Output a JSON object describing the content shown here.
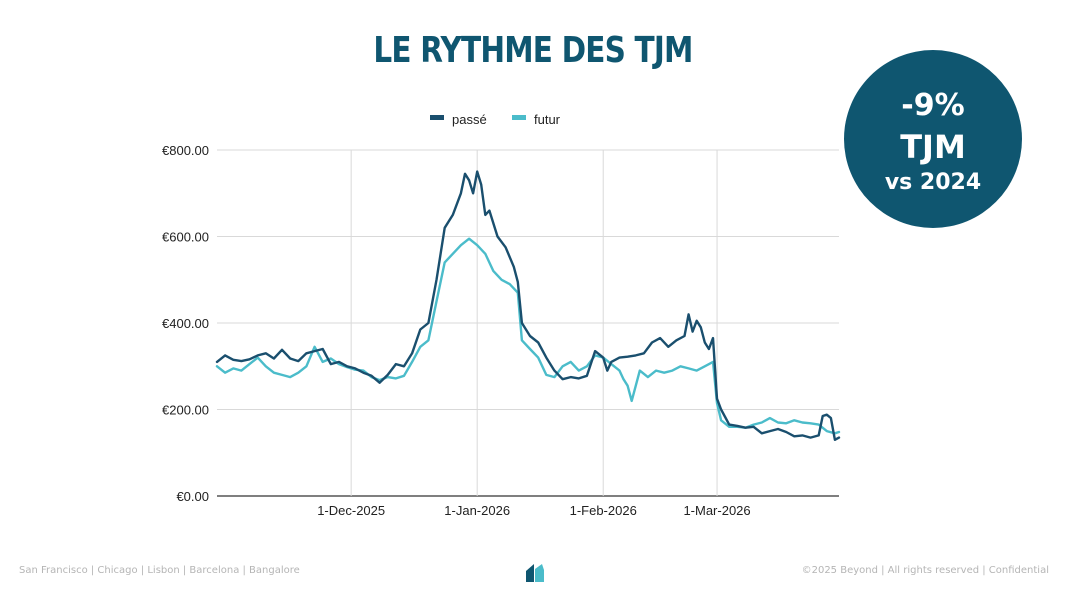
{
  "header": {
    "title": "LE RYTHME DES TJM"
  },
  "badge": {
    "line1": "-9%",
    "line2": "TJM",
    "line3": "vs 2024"
  },
  "footer": {
    "left": "San Francisco | Chicago | Lisbon | Barcelona | Bangalore",
    "right": "©2025 Beyond | All rights reserved | Confidential"
  },
  "colors": {
    "brand": "#0f5670",
    "passe": "#1a4f6e",
    "futur": "#4bbcca"
  },
  "chart_data": {
    "type": "line",
    "title": "",
    "legend_position": "top",
    "grid": true,
    "ylim": [
      0,
      800
    ],
    "y_ticks": [
      0,
      200,
      400,
      600,
      800
    ],
    "y_tick_labels": [
      "€0.00",
      "€200.00",
      "€400.00",
      "€600.00",
      "€800.00"
    ],
    "x_range": [
      "2025-10-29",
      "2026-03-31"
    ],
    "x_ticks": [
      "2025-12-01",
      "2026-01-01",
      "2026-02-01",
      "2026-03-01"
    ],
    "x_tick_labels": [
      "1-Dec-2025",
      "1-Jan-2026",
      "1-Feb-2026",
      "1-Mar-2026"
    ],
    "series": [
      {
        "name": "passé",
        "color": "#1a4f6e",
        "points": [
          [
            "2025-10-29",
            310
          ],
          [
            "2025-10-31",
            325
          ],
          [
            "2025-11-02",
            315
          ],
          [
            "2025-11-04",
            312
          ],
          [
            "2025-11-06",
            316
          ],
          [
            "2025-11-08",
            325
          ],
          [
            "2025-11-10",
            330
          ],
          [
            "2025-11-12",
            318
          ],
          [
            "2025-11-14",
            338
          ],
          [
            "2025-11-16",
            318
          ],
          [
            "2025-11-18",
            312
          ],
          [
            "2025-11-20",
            330
          ],
          [
            "2025-11-22",
            335
          ],
          [
            "2025-11-24",
            340
          ],
          [
            "2025-11-26",
            305
          ],
          [
            "2025-11-28",
            310
          ],
          [
            "2025-11-30",
            300
          ],
          [
            "2025-12-02",
            295
          ],
          [
            "2025-12-04",
            285
          ],
          [
            "2025-12-06",
            278
          ],
          [
            "2025-12-08",
            262
          ],
          [
            "2025-12-10",
            280
          ],
          [
            "2025-12-12",
            305
          ],
          [
            "2025-12-14",
            300
          ],
          [
            "2025-12-16",
            330
          ],
          [
            "2025-12-18",
            385
          ],
          [
            "2025-12-20",
            400
          ],
          [
            "2025-12-22",
            500
          ],
          [
            "2025-12-24",
            620
          ],
          [
            "2025-12-26",
            650
          ],
          [
            "2025-12-28",
            700
          ],
          [
            "2025-12-29",
            745
          ],
          [
            "2025-12-30",
            730
          ],
          [
            "2025-12-31",
            700
          ],
          [
            "2026-01-01",
            750
          ],
          [
            "2026-01-02",
            720
          ],
          [
            "2026-01-03",
            650
          ],
          [
            "2026-01-04",
            660
          ],
          [
            "2026-01-06",
            600
          ],
          [
            "2026-01-08",
            575
          ],
          [
            "2026-01-10",
            530
          ],
          [
            "2026-01-11",
            495
          ],
          [
            "2026-01-12",
            400
          ],
          [
            "2026-01-14",
            370
          ],
          [
            "2026-01-16",
            355
          ],
          [
            "2026-01-18",
            320
          ],
          [
            "2026-01-20",
            290
          ],
          [
            "2026-01-22",
            270
          ],
          [
            "2026-01-24",
            275
          ],
          [
            "2026-01-26",
            272
          ],
          [
            "2026-01-28",
            278
          ],
          [
            "2026-01-30",
            335
          ],
          [
            "2026-02-01",
            320
          ],
          [
            "2026-02-02",
            290
          ],
          [
            "2026-02-03",
            310
          ],
          [
            "2026-02-05",
            320
          ],
          [
            "2026-02-07",
            322
          ],
          [
            "2026-02-09",
            325
          ],
          [
            "2026-02-11",
            330
          ],
          [
            "2026-02-13",
            355
          ],
          [
            "2026-02-15",
            365
          ],
          [
            "2026-02-17",
            345
          ],
          [
            "2026-02-19",
            360
          ],
          [
            "2026-02-21",
            370
          ],
          [
            "2026-02-22",
            420
          ],
          [
            "2026-02-23",
            380
          ],
          [
            "2026-02-24",
            405
          ],
          [
            "2026-02-25",
            390
          ],
          [
            "2026-02-26",
            355
          ],
          [
            "2026-02-27",
            340
          ],
          [
            "2026-02-28",
            365
          ],
          [
            "2026-03-01",
            225
          ],
          [
            "2026-03-02",
            200
          ],
          [
            "2026-03-04",
            165
          ],
          [
            "2026-03-06",
            162
          ],
          [
            "2026-03-08",
            158
          ],
          [
            "2026-03-10",
            160
          ],
          [
            "2026-03-12",
            145
          ],
          [
            "2026-03-14",
            150
          ],
          [
            "2026-03-16",
            155
          ],
          [
            "2026-03-18",
            148
          ],
          [
            "2026-03-20",
            138
          ],
          [
            "2026-03-22",
            140
          ],
          [
            "2026-03-24",
            135
          ],
          [
            "2026-03-26",
            140
          ],
          [
            "2026-03-27",
            185
          ],
          [
            "2026-03-28",
            188
          ],
          [
            "2026-03-29",
            180
          ],
          [
            "2026-03-30",
            130
          ],
          [
            "2026-03-31",
            135
          ]
        ]
      },
      {
        "name": "futur",
        "color": "#4bbcca",
        "points": [
          [
            "2025-10-29",
            300
          ],
          [
            "2025-10-31",
            285
          ],
          [
            "2025-11-02",
            295
          ],
          [
            "2025-11-04",
            290
          ],
          [
            "2025-11-06",
            305
          ],
          [
            "2025-11-08",
            320
          ],
          [
            "2025-11-10",
            300
          ],
          [
            "2025-11-12",
            285
          ],
          [
            "2025-11-14",
            280
          ],
          [
            "2025-11-16",
            275
          ],
          [
            "2025-11-18",
            285
          ],
          [
            "2025-11-20",
            300
          ],
          [
            "2025-11-22",
            345
          ],
          [
            "2025-11-24",
            310
          ],
          [
            "2025-11-26",
            318
          ],
          [
            "2025-11-28",
            305
          ],
          [
            "2025-11-30",
            298
          ],
          [
            "2025-12-02",
            292
          ],
          [
            "2025-12-04",
            290
          ],
          [
            "2025-12-06",
            275
          ],
          [
            "2025-12-08",
            268
          ],
          [
            "2025-12-10",
            275
          ],
          [
            "2025-12-12",
            272
          ],
          [
            "2025-12-14",
            278
          ],
          [
            "2025-12-16",
            310
          ],
          [
            "2025-12-18",
            345
          ],
          [
            "2025-12-20",
            360
          ],
          [
            "2025-12-22",
            450
          ],
          [
            "2025-12-24",
            540
          ],
          [
            "2025-12-26",
            560
          ],
          [
            "2025-12-28",
            580
          ],
          [
            "2025-12-30",
            595
          ],
          [
            "2026-01-01",
            580
          ],
          [
            "2026-01-03",
            560
          ],
          [
            "2026-01-05",
            520
          ],
          [
            "2026-01-07",
            500
          ],
          [
            "2026-01-09",
            490
          ],
          [
            "2026-01-11",
            470
          ],
          [
            "2026-01-12",
            360
          ],
          [
            "2026-01-14",
            340
          ],
          [
            "2026-01-16",
            320
          ],
          [
            "2026-01-18",
            280
          ],
          [
            "2026-01-20",
            275
          ],
          [
            "2026-01-22",
            300
          ],
          [
            "2026-01-24",
            310
          ],
          [
            "2026-01-26",
            290
          ],
          [
            "2026-01-28",
            300
          ],
          [
            "2026-01-30",
            325
          ],
          [
            "2026-02-01",
            320
          ],
          [
            "2026-02-03",
            305
          ],
          [
            "2026-02-05",
            290
          ],
          [
            "2026-02-06",
            270
          ],
          [
            "2026-02-07",
            255
          ],
          [
            "2026-02-08",
            220
          ],
          [
            "2026-02-10",
            290
          ],
          [
            "2026-02-12",
            275
          ],
          [
            "2026-02-14",
            290
          ],
          [
            "2026-02-16",
            285
          ],
          [
            "2026-02-18",
            290
          ],
          [
            "2026-02-20",
            300
          ],
          [
            "2026-02-22",
            295
          ],
          [
            "2026-02-24",
            290
          ],
          [
            "2026-02-26",
            300
          ],
          [
            "2026-02-28",
            310
          ],
          [
            "2026-03-01",
            215
          ],
          [
            "2026-03-02",
            175
          ],
          [
            "2026-03-04",
            160
          ],
          [
            "2026-03-06",
            160
          ],
          [
            "2026-03-08",
            158
          ],
          [
            "2026-03-10",
            165
          ],
          [
            "2026-03-12",
            170
          ],
          [
            "2026-03-14",
            180
          ],
          [
            "2026-03-16",
            170
          ],
          [
            "2026-03-18",
            168
          ],
          [
            "2026-03-20",
            175
          ],
          [
            "2026-03-22",
            170
          ],
          [
            "2026-03-24",
            168
          ],
          [
            "2026-03-26",
            165
          ],
          [
            "2026-03-28",
            150
          ],
          [
            "2026-03-30",
            145
          ],
          [
            "2026-03-31",
            148
          ]
        ]
      }
    ]
  }
}
